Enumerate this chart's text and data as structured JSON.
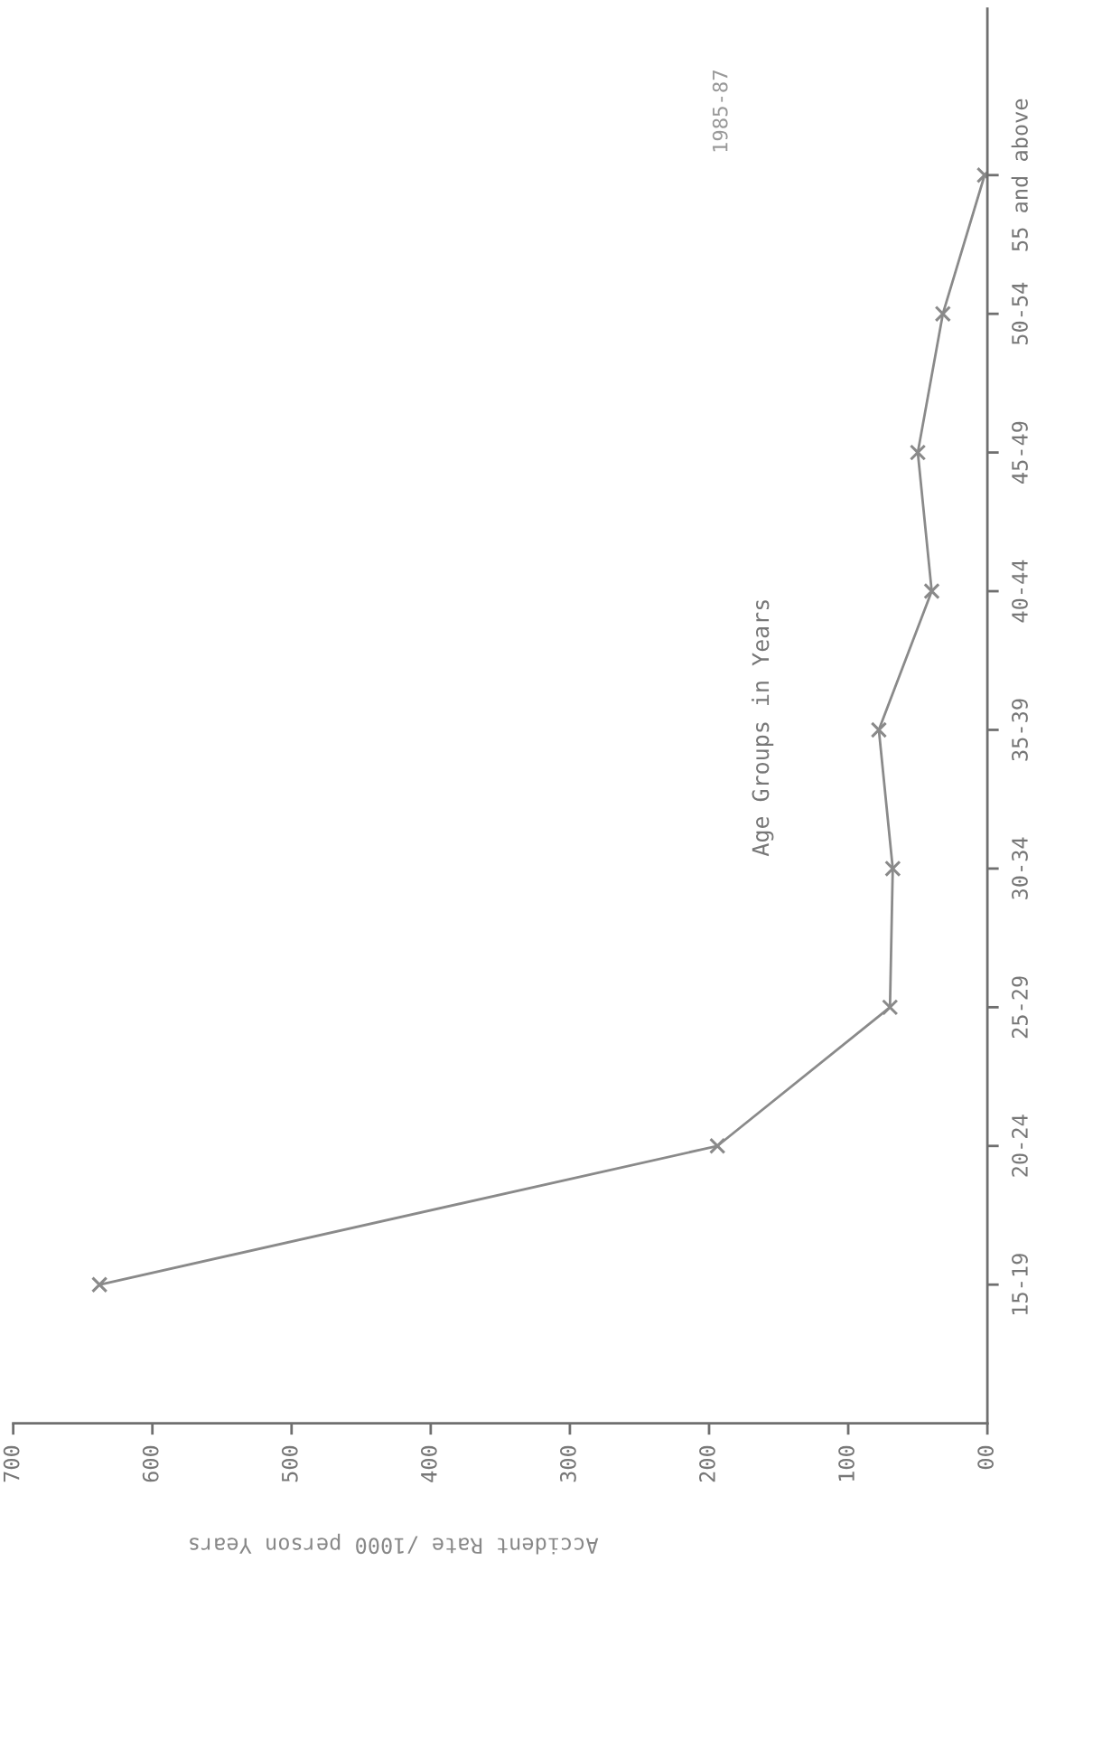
{
  "chart_data": {
    "type": "line",
    "orientation": "horizontal",
    "title": "1985-87",
    "xlabel": "Accident Rate /1000 person Years",
    "ylabel": "Age Groups in Years",
    "categories": [
      "55 and above",
      "50-54",
      "45-49",
      "40-44",
      "35-39",
      "30-34",
      "25-29",
      "20-24",
      "15-19"
    ],
    "series": [
      {
        "color": "#8a8a8a",
        "values": [
          2,
          32,
          50,
          40,
          78,
          68,
          70,
          194,
          638
        ]
      }
    ],
    "xlim": [
      700,
      0
    ],
    "xticks": [
      {
        "value": 700,
        "label": "700"
      },
      600,
      500,
      400,
      300,
      200,
      100,
      {
        "value": 0,
        "label": "00"
      }
    ],
    "marker": "cross",
    "line_style": "solid",
    "grid": false,
    "legend": false
  }
}
